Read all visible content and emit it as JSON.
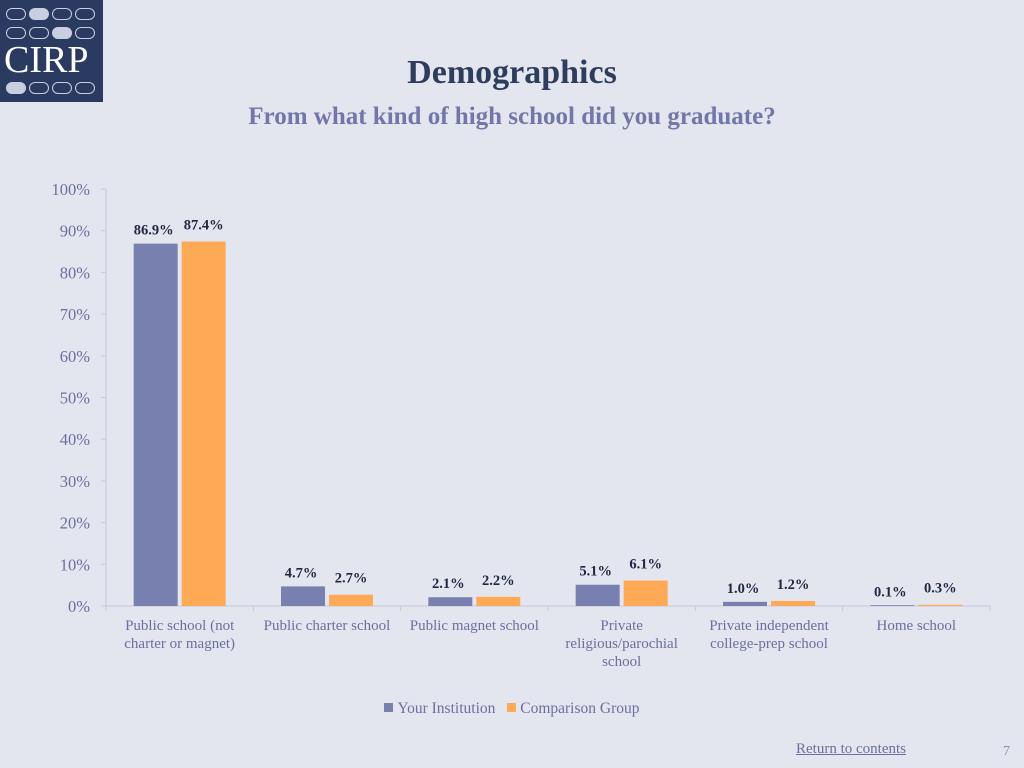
{
  "logo": {
    "text": "CIRP"
  },
  "header": {
    "title": "Demographics",
    "subtitle": "From what kind of high school did you graduate?"
  },
  "colors": {
    "your_institution": "#7880b0",
    "comparison_group": "#fda956",
    "axis": "#c4c8d8",
    "text": "#6b6fa1"
  },
  "chart_data": {
    "type": "bar",
    "categories": [
      [
        "Public school (not",
        "charter or magnet)"
      ],
      [
        "Public charter school"
      ],
      [
        "Public magnet school"
      ],
      [
        "Private",
        "religious/parochial",
        "school"
      ],
      [
        "Private independent",
        "college-prep school"
      ],
      [
        "Home school"
      ]
    ],
    "series": [
      {
        "name": "Your Institution",
        "values": [
          86.9,
          4.7,
          2.1,
          5.1,
          1.0,
          0.1
        ],
        "labels": [
          "86.9%",
          "4.7%",
          "2.1%",
          "5.1%",
          "1.0%",
          "0.1%"
        ]
      },
      {
        "name": "Comparison Group",
        "values": [
          87.4,
          2.7,
          2.2,
          6.1,
          1.2,
          0.3
        ],
        "labels": [
          "87.4%",
          "2.7%",
          "2.2%",
          "6.1%",
          "1.2%",
          "0.3%"
        ]
      }
    ],
    "ylim": [
      0,
      100
    ],
    "yticks": [
      "0%",
      "10%",
      "20%",
      "30%",
      "40%",
      "50%",
      "60%",
      "70%",
      "80%",
      "90%",
      "100%"
    ],
    "grid": false,
    "legend_position": "bottom"
  },
  "footer": {
    "return_link": "Return to contents",
    "page_number": "7"
  }
}
